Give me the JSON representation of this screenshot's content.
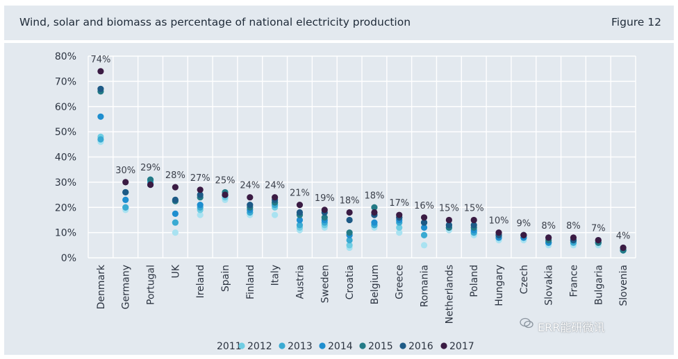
{
  "header": {
    "title": "Wind, solar and biomass as percentage of national electricity production",
    "figure": "Figure 12"
  },
  "watermark": {
    "icon": "wechat-icon",
    "text": "ERR能研微讯"
  },
  "colors": {
    "2011": "#a9e2f1",
    "2012": "#6fcde3",
    "2013": "#3aaad2",
    "2014": "#1e8ecf",
    "2015": "#237a86",
    "2016": "#1d5a86",
    "2017": "#3a1b43",
    "grid": "#ffffff",
    "panel": "#e3e9ef"
  },
  "chart_data": {
    "type": "scatter",
    "title": "Wind, solar and biomass as percentage of national electricity production",
    "xlabel": "",
    "ylabel": "",
    "ylim": [
      0,
      80
    ],
    "yticks": [
      0,
      10,
      20,
      30,
      40,
      50,
      60,
      70,
      80
    ],
    "ytick_labels": [
      "0%",
      "10%",
      "20%",
      "30%",
      "40%",
      "50%",
      "60%",
      "70%",
      "80%"
    ],
    "categories": [
      "Denmark",
      "Germany",
      "Portugal",
      "UK",
      "Ireland",
      "Spain",
      "Finland",
      "Italy",
      "Austria",
      "Sweden",
      "Croatia",
      "Belgium",
      "Greece",
      "Romania",
      "Netherlands",
      "Poland",
      "Hungary",
      "Czech",
      "Slovakia",
      "France",
      "Bulgaria",
      "Slovenia"
    ],
    "top_labels": [
      "74%",
      "30%",
      "29%",
      "28%",
      "27%",
      "25%",
      "24%",
      "24%",
      "21%",
      "19%",
      "18%",
      "18%",
      "17%",
      "16%",
      "15%",
      "15%",
      "10%",
      "9%",
      "8%",
      "8%",
      "7%",
      "4%"
    ],
    "legend": [
      "2011",
      "2012",
      "2013",
      "2014",
      "2015",
      "2016",
      "2017"
    ],
    "grid": true,
    "series": [
      {
        "name": "2011",
        "values": [
          46,
          19,
          29,
          10,
          17,
          23,
          17,
          17,
          11,
          12,
          4,
          12,
          10,
          5,
          11,
          9,
          7,
          7,
          5,
          5,
          5,
          3
        ]
      },
      {
        "name": "2012",
        "values": [
          48,
          20,
          30,
          14,
          19,
          24,
          18,
          20,
          12,
          13,
          5,
          13,
          12,
          9,
          12,
          10,
          8,
          8,
          6,
          6,
          6,
          3
        ]
      },
      {
        "name": "2013",
        "values": [
          47,
          20,
          30,
          14,
          20,
          25,
          18,
          21,
          13,
          14,
          7,
          13,
          14,
          9,
          12,
          10,
          8,
          8,
          6,
          6,
          6,
          3
        ]
      },
      {
        "name": "2014",
        "values": [
          56,
          23,
          31,
          17.5,
          21,
          25,
          19,
          22,
          15,
          15,
          9,
          14,
          15,
          12,
          13,
          11,
          8,
          8,
          6,
          7,
          6,
          3
        ]
      },
      {
        "name": "2015",
        "values": [
          66,
          26,
          31,
          22.5,
          24,
          26,
          20,
          22,
          17,
          16,
          10,
          20,
          16,
          14,
          12,
          12,
          9,
          9,
          7,
          7,
          6,
          3
        ]
      },
      {
        "name": "2016",
        "values": [
          67,
          26,
          29,
          23,
          25,
          25,
          21,
          23,
          18,
          18,
          15,
          17,
          16,
          14,
          13,
          13,
          9,
          9,
          8,
          7,
          7,
          4
        ]
      },
      {
        "name": "2017",
        "values": [
          74,
          30,
          29,
          28,
          27,
          25,
          24,
          24,
          21,
          19,
          18,
          18,
          17,
          16,
          15,
          15,
          10,
          9,
          8,
          8,
          7,
          4
        ]
      }
    ]
  }
}
